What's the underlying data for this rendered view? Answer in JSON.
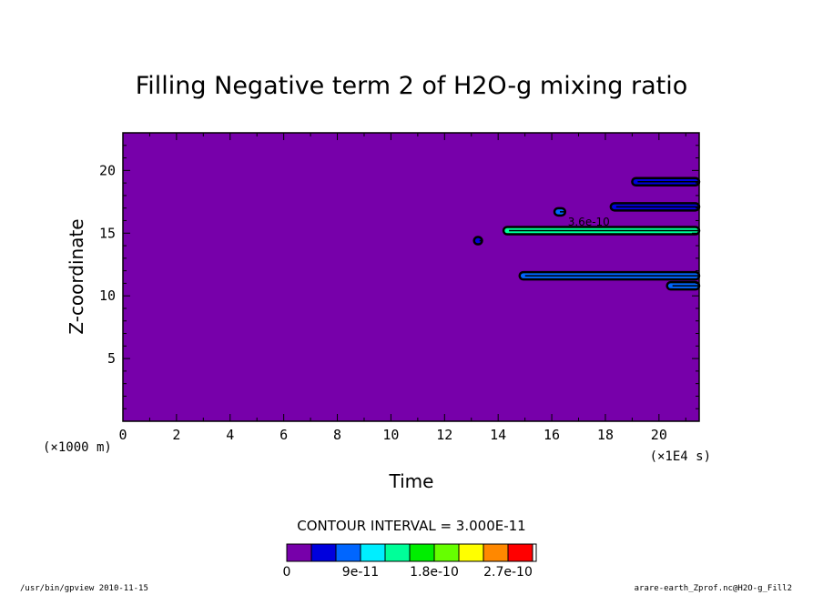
{
  "chart_data": {
    "type": "heatmap",
    "title": "Filling Negative term 2 of H2O-g mixing ratio",
    "xlabel": "Time",
    "ylabel": "Z-coordinate",
    "x_unit": "(×1E4 s)",
    "y_unit": "(×1000 m)",
    "xlim": [
      0,
      21.5
    ],
    "ylim": [
      0,
      23
    ],
    "x_ticks": [
      0,
      2,
      4,
      6,
      8,
      10,
      12,
      14,
      16,
      18,
      20
    ],
    "y_ticks": [
      5,
      10,
      15,
      20
    ],
    "background_level": 0,
    "contour_interval_label": "CONTOUR INTERVAL = 3.000E-11",
    "colorbar": {
      "colors": [
        "#7700aa",
        "#0000dd",
        "#0066ff",
        "#00eeff",
        "#00ff99",
        "#00ee00",
        "#66ff00",
        "#ffff00",
        "#ff8800",
        "#ff0000"
      ],
      "tick_labels": [
        "0",
        "9e-11",
        "1.8e-10",
        "2.7e-10"
      ],
      "tick_values": [
        0,
        9e-11,
        1.8e-10,
        2.7e-10
      ],
      "min": 0,
      "max": 3e-10
    },
    "inline_label": "3.6e-10",
    "features": [
      {
        "x_start": 14.2,
        "x_end": 21.5,
        "z": 15.2,
        "level": 1.2e-10
      },
      {
        "x_start": 14.8,
        "x_end": 21.5,
        "z": 11.6,
        "level": 6e-11
      },
      {
        "x_start": 18.2,
        "x_end": 21.5,
        "z": 17.1,
        "level": 3e-11
      },
      {
        "x_start": 19.0,
        "x_end": 21.5,
        "z": 19.1,
        "level": 3e-11
      },
      {
        "x_start": 20.3,
        "x_end": 21.5,
        "z": 10.8,
        "level": 6e-11
      },
      {
        "x_start": 16.1,
        "x_end": 16.5,
        "z": 16.7,
        "level": 6e-11
      },
      {
        "x_start": 13.1,
        "x_end": 13.4,
        "z": 14.4,
        "level": 3e-11
      }
    ]
  },
  "footer": {
    "left": "/usr/bin/gpview  2010-11-15",
    "right": "arare-earth_Zprof.nc@H2O-g_Fill2"
  }
}
